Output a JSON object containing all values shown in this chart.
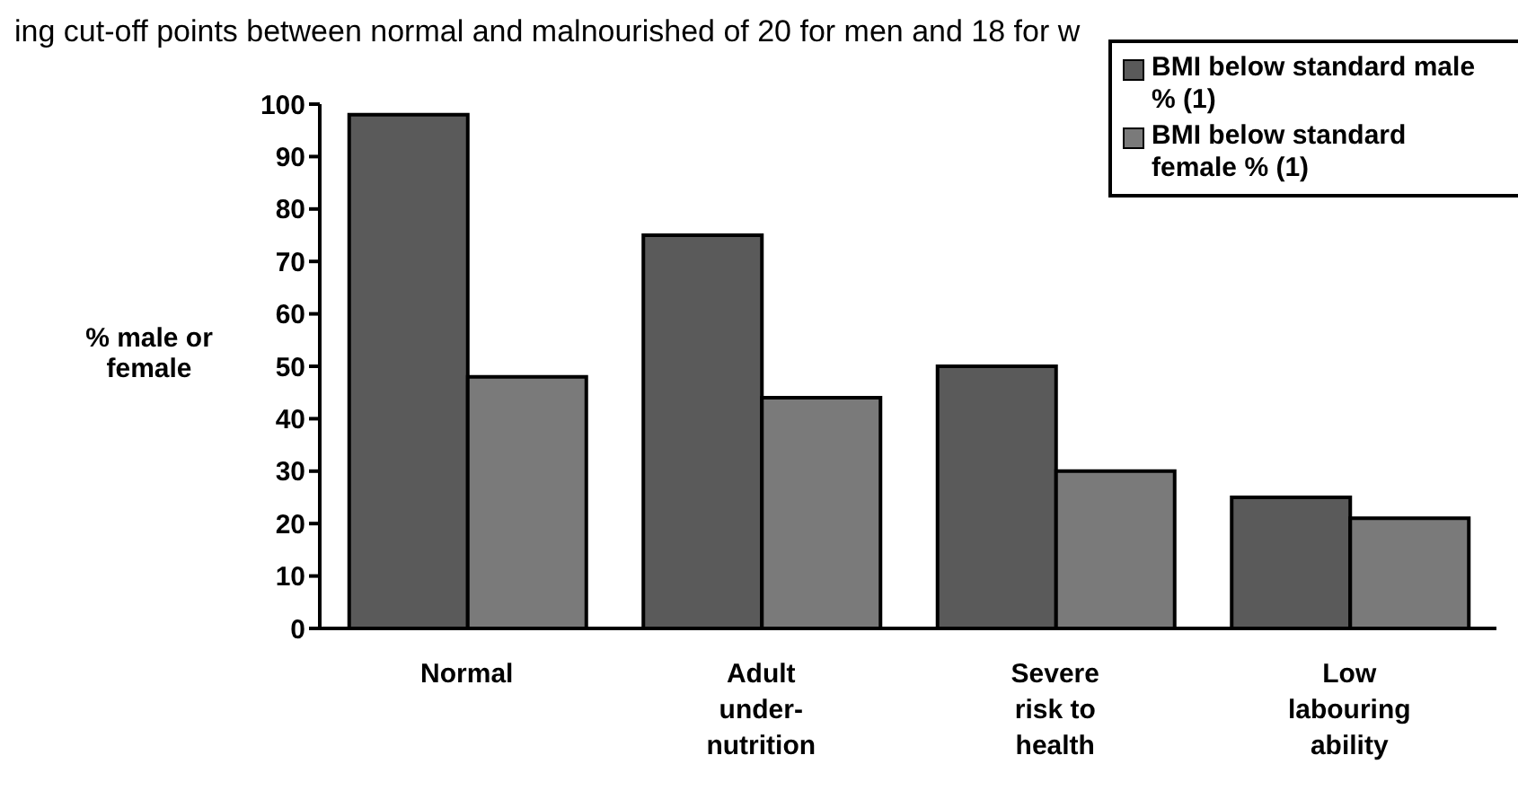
{
  "chart_data": {
    "type": "bar",
    "title": "ing cut-off points between normal and malnourished of 20 for men and 18 for w",
    "ylabel": "% male or female",
    "categories": [
      "Normal",
      "Adult under-nutrition",
      "Severe risk to health",
      "Low labouring ability"
    ],
    "series": [
      {
        "name": "BMI below standard male % (1)",
        "color": "#5a5a5a",
        "values": [
          98,
          75,
          50,
          25
        ]
      },
      {
        "name": "BMI below standard female % (1)",
        "color": "#7a7a7a",
        "values": [
          48,
          44,
          30,
          21
        ]
      }
    ],
    "ylim": [
      0,
      100
    ],
    "yticks": [
      0,
      10,
      20,
      30,
      40,
      50,
      60,
      70,
      80,
      90,
      100
    ],
    "grid": false,
    "legend": "top right"
  }
}
